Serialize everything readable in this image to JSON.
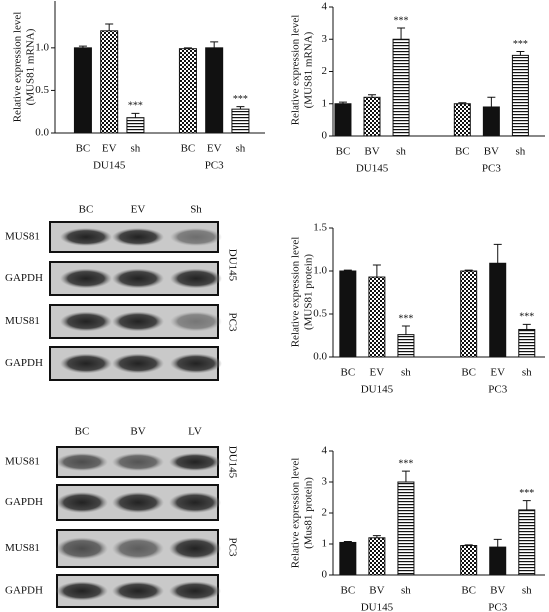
{
  "chart_data": [
    {
      "type": "bar",
      "y_label": [
        "Relative expression level",
        "(MUS81 mRNA)"
      ],
      "ylim": [
        0,
        1.55
      ],
      "yticks": [
        {
          "value": 0,
          "label": "0.0"
        },
        {
          "value": 0.5,
          "label": "0.5"
        },
        {
          "value": 1,
          "label": "1.0"
        }
      ],
      "groups": [
        {
          "name": "DU145",
          "categories": [
            "BC",
            "EV",
            "sh"
          ],
          "values": [
            1.0,
            1.2,
            0.18
          ],
          "errors": [
            0.02,
            0.08,
            0.05
          ],
          "patterns": [
            "solid",
            "checker",
            "stripes"
          ],
          "significance": {
            "index": 2,
            "label": "***"
          }
        },
        {
          "name": "PC3",
          "categories": [
            "BC",
            "EV",
            "sh"
          ],
          "values": [
            0.99,
            1.0,
            0.28
          ],
          "errors": [
            0.01,
            0.07,
            0.03
          ],
          "patterns": [
            "checker",
            "solid",
            "stripes"
          ],
          "significance": {
            "index": 2,
            "label": "***"
          }
        }
      ]
    },
    {
      "type": "bar",
      "y_label": [
        "Relative expression level",
        "(MUS81 mRNA)"
      ],
      "ylim": [
        0,
        4
      ],
      "yticks": [
        0,
        1,
        2,
        3,
        4
      ],
      "groups": [
        {
          "name": "DU145",
          "categories": [
            "BC",
            "BV",
            "sh"
          ],
          "values": [
            1.0,
            1.2,
            3.0
          ],
          "errors": [
            0.05,
            0.08,
            0.35
          ],
          "patterns": [
            "solid",
            "checker",
            "stripes"
          ],
          "significance": {
            "index": 2,
            "label": "***"
          }
        },
        {
          "name": "PC3",
          "categories": [
            "BC",
            "BV",
            "sh"
          ],
          "values": [
            1.0,
            0.9,
            2.5
          ],
          "errors": [
            0.03,
            0.3,
            0.12
          ],
          "patterns": [
            "checker",
            "solid",
            "stripes"
          ],
          "significance": {
            "index": 2,
            "label": "***"
          }
        }
      ]
    },
    {
      "type": "bar",
      "y_label": [
        "Relative expression level",
        "(MUS81 protein)"
      ],
      "ylim": [
        0,
        1.5
      ],
      "yticks": [
        {
          "value": 0,
          "label": "0.0"
        },
        {
          "value": 0.5,
          "label": "0.5"
        },
        {
          "value": 1,
          "label": "1.0"
        },
        {
          "value": 1.5,
          "label": "1.5"
        }
      ],
      "groups": [
        {
          "name": "DU145",
          "categories": [
            "BC",
            "EV",
            "sh"
          ],
          "values": [
            1.0,
            0.93,
            0.26
          ],
          "errors": [
            0.01,
            0.14,
            0.1
          ],
          "patterns": [
            "solid",
            "checker",
            "stripes"
          ],
          "significance": {
            "index": 2,
            "label": "***"
          }
        },
        {
          "name": "PC3",
          "categories": [
            "BC",
            "EV",
            "sh"
          ],
          "values": [
            1.0,
            1.09,
            0.32
          ],
          "errors": [
            0.01,
            0.22,
            0.06
          ],
          "patterns": [
            "checker",
            "solid",
            "stripes"
          ],
          "significance": {
            "index": 2,
            "label": "***"
          }
        }
      ]
    },
    {
      "type": "bar",
      "y_label": [
        "Relative expression level",
        "(Mus81 protein)"
      ],
      "ylim": [
        0,
        4
      ],
      "yticks": [
        0,
        1,
        2,
        3,
        4
      ],
      "groups": [
        {
          "name": "DU145",
          "categories": [
            "BC",
            "BV",
            "sh"
          ],
          "values": [
            1.05,
            1.2,
            3.0
          ],
          "errors": [
            0.03,
            0.07,
            0.35
          ],
          "patterns": [
            "solid",
            "checker",
            "stripes"
          ],
          "significance": {
            "index": 2,
            "label": "***"
          }
        },
        {
          "name": "PC3",
          "categories": [
            "BC",
            "BV",
            "sh"
          ],
          "values": [
            0.95,
            0.9,
            2.1
          ],
          "errors": [
            0.02,
            0.25,
            0.3
          ],
          "patterns": [
            "checker",
            "solid",
            "stripes"
          ],
          "significance": {
            "index": 2,
            "label": "***"
          }
        }
      ]
    }
  ],
  "blots": [
    {
      "lanes": [
        "BC",
        "EV",
        "Sh"
      ],
      "rows": [
        "MUS81",
        "GAPDH",
        "MUS81",
        "GAPDH"
      ],
      "cell_lines": [
        "DU145",
        "PC3"
      ]
    },
    {
      "lanes": [
        "BC",
        "BV",
        "LV"
      ],
      "rows": [
        "MUS81",
        "GAPDH",
        "MUS81",
        "GAPDH"
      ],
      "cell_lines": [
        "DU145",
        "PC3"
      ]
    }
  ]
}
